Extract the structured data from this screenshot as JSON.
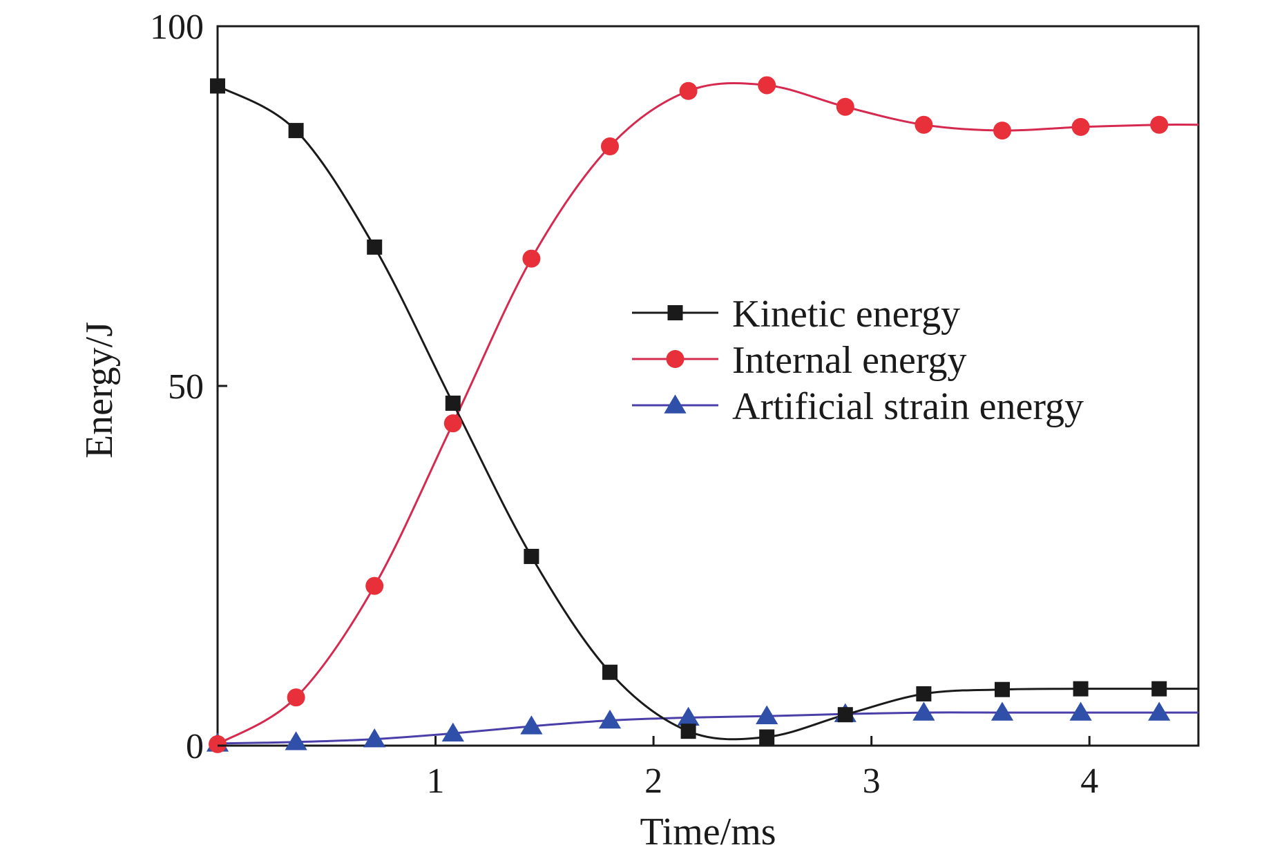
{
  "chart_data": {
    "type": "line",
    "xlabel": "Time/ms",
    "ylabel": "Energy/J",
    "xlim": [
      0,
      4.5
    ],
    "ylim": [
      0,
      100
    ],
    "xticks": [
      1,
      2,
      3,
      4
    ],
    "xtick_labels": [
      "1",
      "2",
      "3",
      "4"
    ],
    "yticks": [
      0,
      50,
      100
    ],
    "ytick_labels": [
      "0",
      "50",
      "100"
    ],
    "legend_position": "center-right",
    "series": [
      {
        "name": "Kinetic energy",
        "color": "#1a1a1a",
        "marker": "square",
        "x": [
          0,
          0.36,
          0.72,
          1.08,
          1.44,
          1.8,
          2.16,
          2.52,
          2.88,
          3.24,
          3.6,
          3.96,
          4.32,
          4.5
        ],
        "y": [
          91.7,
          85.5,
          69.3,
          47.6,
          26.3,
          10.2,
          2.0,
          1.2,
          4.3,
          7.2,
          7.8,
          7.9,
          7.9,
          7.9
        ]
      },
      {
        "name": "Internal energy",
        "color": "#e8303a",
        "line_color": "#d6294f",
        "marker": "circle",
        "x": [
          0,
          0.36,
          0.72,
          1.08,
          1.44,
          1.8,
          2.16,
          2.52,
          2.88,
          3.24,
          3.6,
          3.96,
          4.32,
          4.5
        ],
        "y": [
          0.2,
          6.7,
          22.2,
          44.8,
          67.7,
          83.3,
          91.0,
          91.8,
          88.8,
          86.3,
          85.5,
          86.0,
          86.3,
          86.3
        ]
      },
      {
        "name": "Artificial strain energy",
        "color": "#2f4fa8",
        "line_color": "#4a3fa8",
        "marker": "triangle",
        "x": [
          0,
          0.36,
          0.72,
          1.08,
          1.44,
          1.8,
          2.16,
          2.52,
          2.88,
          3.24,
          3.6,
          3.96,
          4.32,
          4.5
        ],
        "y": [
          0.3,
          0.5,
          0.9,
          1.7,
          2.7,
          3.5,
          3.9,
          4.1,
          4.4,
          4.6,
          4.6,
          4.6,
          4.6,
          4.6
        ]
      }
    ]
  }
}
